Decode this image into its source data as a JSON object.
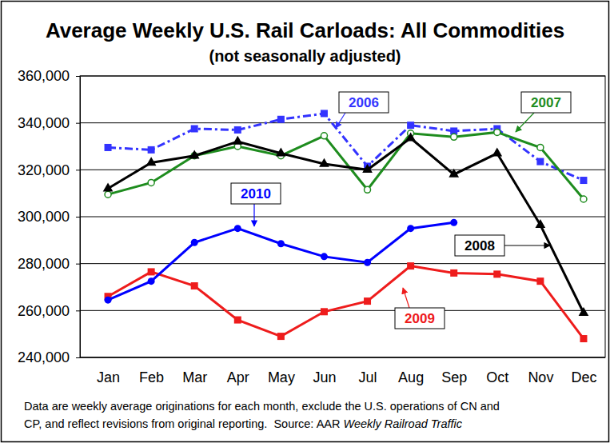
{
  "chart_data": {
    "type": "line",
    "title": "Average Weekly U.S. Rail Carloads: All Commodities",
    "subtitle": "(not seasonally adjusted)",
    "categories": [
      "Jan",
      "Feb",
      "Mar",
      "Apr",
      "May",
      "Jun",
      "Jul",
      "Aug",
      "Sep",
      "Oct",
      "Nov",
      "Dec"
    ],
    "series": [
      {
        "name": "2006",
        "color": "#3333ff",
        "marker": "square",
        "line_style": "dashdot",
        "values": [
          329500,
          328500,
          337500,
          337000,
          341500,
          344000,
          321500,
          339000,
          336500,
          337500,
          323500,
          315500
        ]
      },
      {
        "name": "2007",
        "color": "#1e8c1e",
        "marker": "open_circle",
        "line_style": "solid",
        "values": [
          309500,
          314500,
          326000,
          330000,
          326000,
          334500,
          311500,
          335500,
          334000,
          336000,
          329500,
          307500
        ]
      },
      {
        "name": "2008",
        "color": "#000000",
        "marker": "triangle",
        "line_style": "solid",
        "values": [
          312000,
          323000,
          326000,
          332000,
          327000,
          322500,
          320000,
          333500,
          318000,
          327000,
          296500,
          259000
        ]
      },
      {
        "name": "2009",
        "color": "#ee1c1c",
        "marker": "square",
        "line_style": "solid",
        "values": [
          266000,
          276500,
          270500,
          256000,
          249000,
          259500,
          264000,
          279000,
          276000,
          275500,
          272500,
          248000
        ]
      },
      {
        "name": "2010",
        "color": "#0000ff",
        "marker": "circle",
        "line_style": "solid",
        "values": [
          264500,
          272500,
          289000,
          295000,
          288500,
          283000,
          280500,
          295000,
          297500,
          null,
          null,
          null
        ]
      }
    ],
    "ylim": [
      240000,
      360000
    ],
    "yticks": [
      {
        "value": 240000,
        "label": "240,000"
      },
      {
        "value": 260000,
        "label": "260,000"
      },
      {
        "value": 280000,
        "label": "280,000"
      },
      {
        "value": 300000,
        "label": "300,000"
      },
      {
        "value": 320000,
        "label": "320,000"
      },
      {
        "value": 340000,
        "label": "340,000"
      },
      {
        "value": 360000,
        "label": "360,000"
      }
    ],
    "grid": true,
    "note_lines": [
      "Data are weekly average originations for each month, exclude the U.S. operations of CN and",
      "CP, and reflect revisions from original reporting.  Source: AAR "
    ],
    "note_italic": "Weekly Railroad Traffic"
  }
}
